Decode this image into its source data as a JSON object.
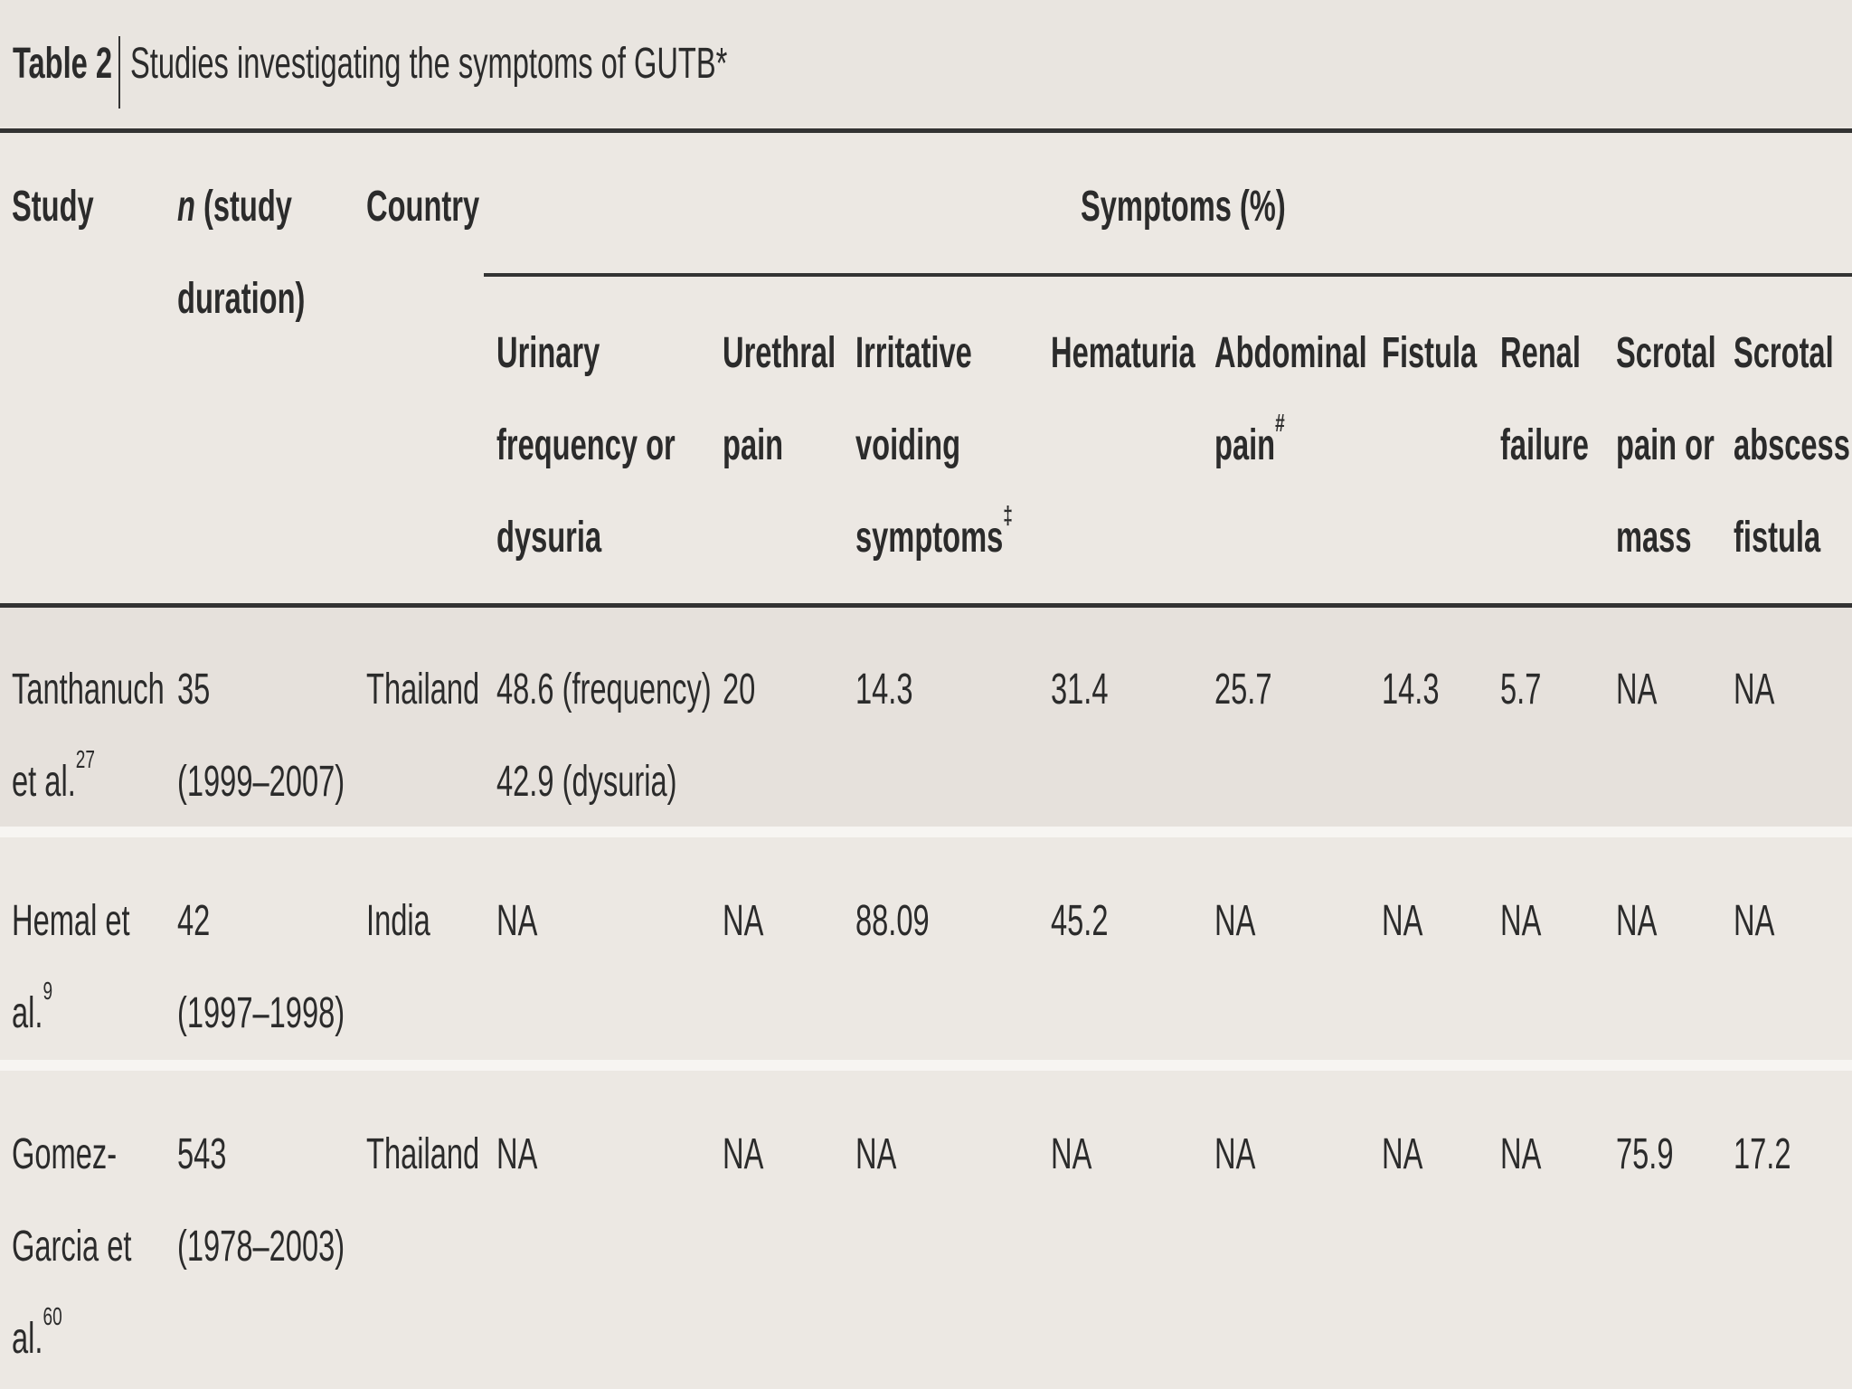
{
  "title": {
    "label": "Table 2",
    "text": "Studies investigating the symptoms of GUTB",
    "mark": "*"
  },
  "header": {
    "study": "Study",
    "n_italic": "n",
    "n_rest": "(study duration)",
    "country": "Country",
    "symptoms": "Symptoms (%)",
    "columns": [
      {
        "text": "Urinary frequency or dysuria"
      },
      {
        "text": "Urethral pain"
      },
      {
        "text": "Irritative voiding symptoms",
        "mark": "‡"
      },
      {
        "text": "Hematuria"
      },
      {
        "text": "Abdominal pain",
        "mark": "#"
      },
      {
        "text": "Fistula"
      },
      {
        "text": "Renal failure"
      },
      {
        "text": "Scrotal pain or mass"
      },
      {
        "text": "Scrotal abscess or fistula"
      }
    ]
  },
  "rows": [
    {
      "study": "Tanthanuch et al.",
      "ref": "27",
      "n": "35",
      "duration": "(1999–2007)",
      "country": "Thailand",
      "values": [
        [
          "48.6 (frequency)",
          "42.9 (dysuria)"
        ],
        "20",
        "14.3",
        "31.4",
        "25.7",
        "14.3",
        "5.7",
        "NA",
        "NA"
      ]
    },
    {
      "study": "Hemal et al.",
      "ref": "9",
      "n": "42",
      "duration": "(1997–1998)",
      "country": "India",
      "values": [
        "NA",
        "NA",
        "88.09",
        "45.2",
        "NA",
        "NA",
        "NA",
        "NA",
        "NA"
      ]
    },
    {
      "study": "Gomez-Garcia et al.",
      "ref": "60",
      "n": "543",
      "duration": "(1978–2003)",
      "country": "Thailand",
      "values": [
        "NA",
        "NA",
        "NA",
        "NA",
        "NA",
        "NA",
        "NA",
        "75.9",
        "17.2"
      ]
    }
  ]
}
